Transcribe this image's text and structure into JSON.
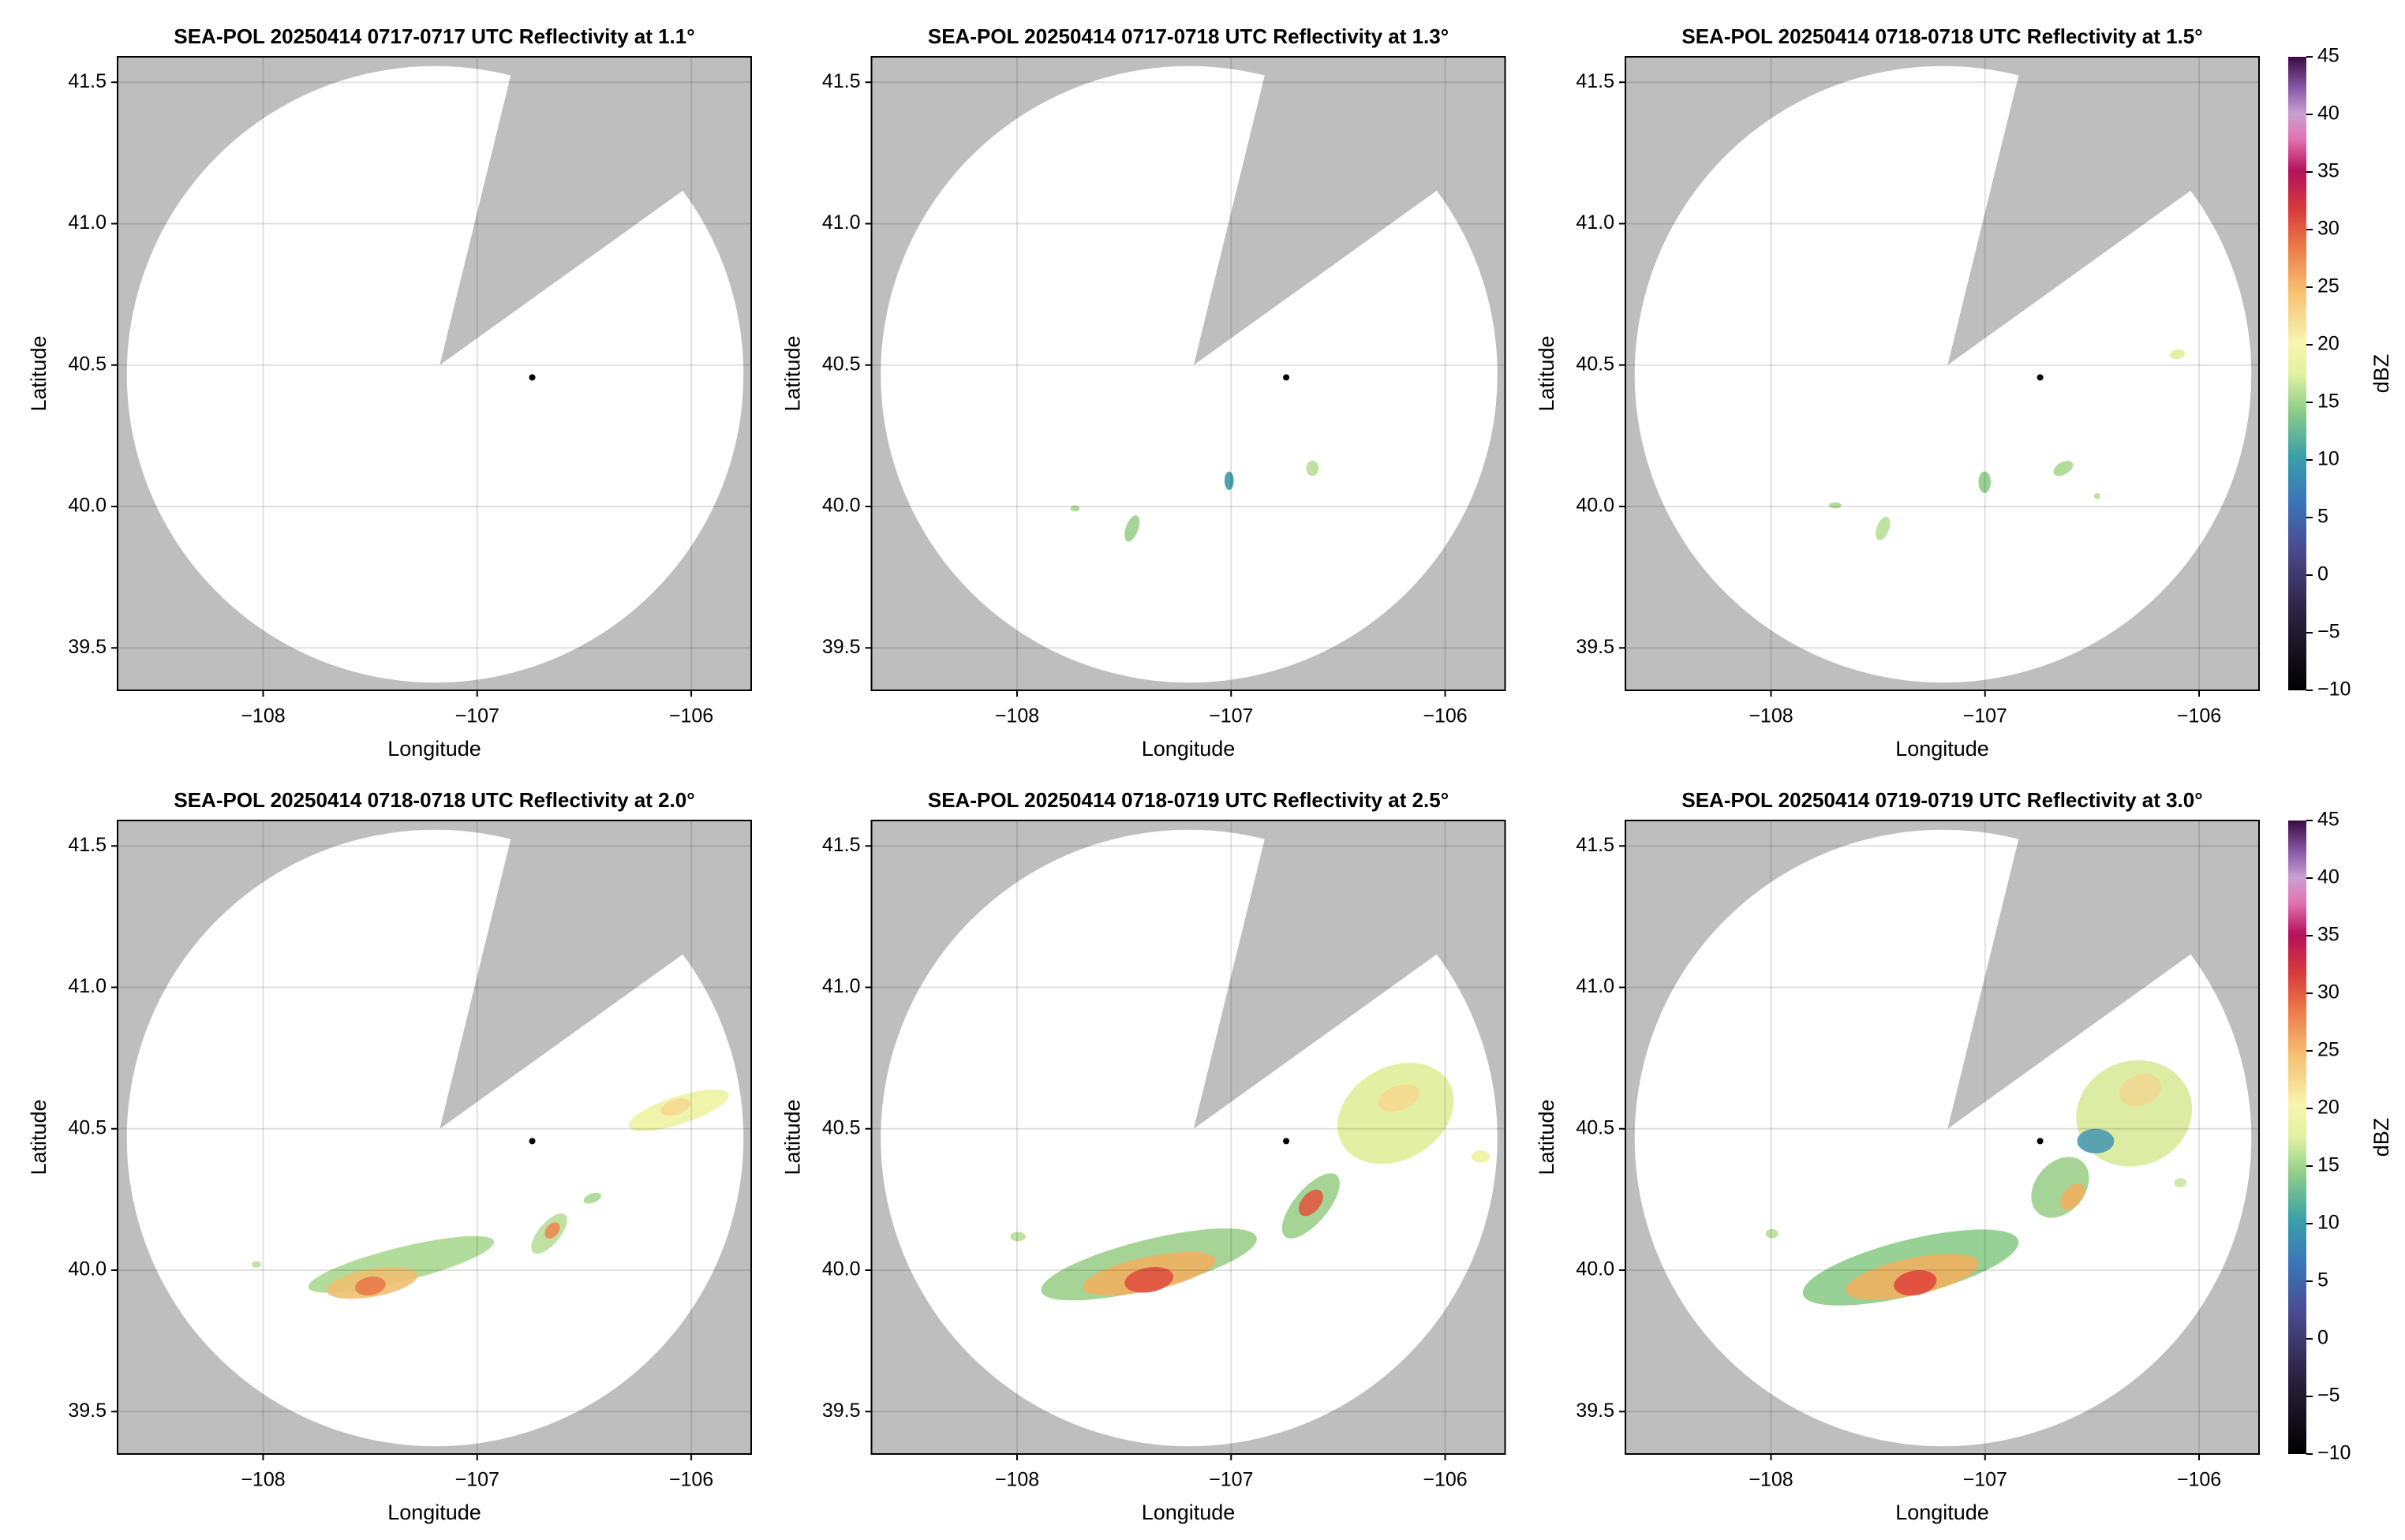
{
  "chart_data": [
    {
      "type": "heatmap",
      "title": "SEA-POL 20250414 0717-0717 UTC Reflectivity at 1.1°",
      "xlabel": "Longitude",
      "ylabel": "Latitude",
      "xlim": [
        -108.68,
        -105.72
      ],
      "ylim": [
        39.35,
        41.59
      ],
      "xticks": [
        {
          "value": -108,
          "label": "−108"
        },
        {
          "value": -107,
          "label": "−107"
        },
        {
          "value": -106,
          "label": "−106"
        }
      ],
      "yticks": [
        39.5,
        {
          "value": 40,
          "label": "40.0"
        },
        40.5,
        {
          "value": 41,
          "label": "41.0"
        },
        41.5
      ],
      "grid": true
    },
    {
      "type": "heatmap",
      "title": "SEA-POL 20250414 0717-0718 UTC Reflectivity at 1.3°",
      "xlabel": "Longitude",
      "ylabel": "Latitude",
      "xlim": [
        -108.68,
        -105.72
      ],
      "ylim": [
        39.35,
        41.59
      ],
      "xticks": [
        {
          "value": -108,
          "label": "−108"
        },
        {
          "value": -107,
          "label": "−107"
        },
        {
          "value": -106,
          "label": "−106"
        }
      ],
      "yticks": [
        39.5,
        {
          "value": 40,
          "label": "40.0"
        },
        40.5,
        {
          "value": 41,
          "label": "41.0"
        },
        41.5
      ],
      "grid": true
    },
    {
      "type": "heatmap",
      "title": "SEA-POL 20250414 0718-0718 UTC Reflectivity at 1.5°",
      "xlabel": "Longitude",
      "ylabel": "Latitude",
      "xlim": [
        -108.68,
        -105.72
      ],
      "ylim": [
        39.35,
        41.59
      ],
      "xticks": [
        {
          "value": -108,
          "label": "−108"
        },
        {
          "value": -107,
          "label": "−107"
        },
        {
          "value": -106,
          "label": "−106"
        }
      ],
      "yticks": [
        39.5,
        {
          "value": 40,
          "label": "40.0"
        },
        40.5,
        {
          "value": 41,
          "label": "41.0"
        },
        41.5
      ],
      "grid": true,
      "colorbar": {
        "label": "dBZ",
        "lim": [
          -10,
          45
        ],
        "ticks": [
          {
            "value": -10,
            "label": "−10"
          },
          {
            "value": -5,
            "label": "−5"
          },
          0,
          5,
          10,
          15,
          20,
          25,
          30,
          35,
          40,
          45
        ]
      }
    },
    {
      "type": "heatmap",
      "title": "SEA-POL 20250414 0718-0718 UTC Reflectivity at 2.0°",
      "xlabel": "Longitude",
      "ylabel": "Latitude",
      "xlim": [
        -108.68,
        -105.72
      ],
      "ylim": [
        39.35,
        41.59
      ],
      "xticks": [
        {
          "value": -108,
          "label": "−108"
        },
        {
          "value": -107,
          "label": "−107"
        },
        {
          "value": -106,
          "label": "−106"
        }
      ],
      "yticks": [
        39.5,
        {
          "value": 40,
          "label": "40.0"
        },
        40.5,
        {
          "value": 41,
          "label": "41.0"
        },
        41.5
      ],
      "grid": true
    },
    {
      "type": "heatmap",
      "title": "SEA-POL 20250414 0718-0719 UTC Reflectivity at 2.5°",
      "xlabel": "Longitude",
      "ylabel": "Latitude",
      "xlim": [
        -108.68,
        -105.72
      ],
      "ylim": [
        39.35,
        41.59
      ],
      "xticks": [
        {
          "value": -108,
          "label": "−108"
        },
        {
          "value": -107,
          "label": "−107"
        },
        {
          "value": -106,
          "label": "−106"
        }
      ],
      "yticks": [
        39.5,
        {
          "value": 40,
          "label": "40.0"
        },
        40.5,
        {
          "value": 41,
          "label": "41.0"
        },
        41.5
      ],
      "grid": true
    },
    {
      "type": "heatmap",
      "title": "SEA-POL 20250414 0719-0719 UTC Reflectivity at 3.0°",
      "xlabel": "Longitude",
      "ylabel": "Latitude",
      "xlim": [
        -108.68,
        -105.72
      ],
      "ylim": [
        39.35,
        41.59
      ],
      "xticks": [
        {
          "value": -108,
          "label": "−108"
        },
        {
          "value": -107,
          "label": "−107"
        },
        {
          "value": -106,
          "label": "−106"
        }
      ],
      "yticks": [
        39.5,
        {
          "value": 40,
          "label": "40.0"
        },
        40.5,
        {
          "value": 41,
          "label": "41.0"
        },
        41.5
      ],
      "grid": true,
      "colorbar": {
        "label": "dBZ",
        "lim": [
          -10,
          45
        ],
        "ticks": [
          {
            "value": -10,
            "label": "−10"
          },
          {
            "value": -5,
            "label": "−5"
          },
          0,
          5,
          10,
          15,
          20,
          25,
          30,
          35,
          40,
          45
        ]
      }
    }
  ]
}
